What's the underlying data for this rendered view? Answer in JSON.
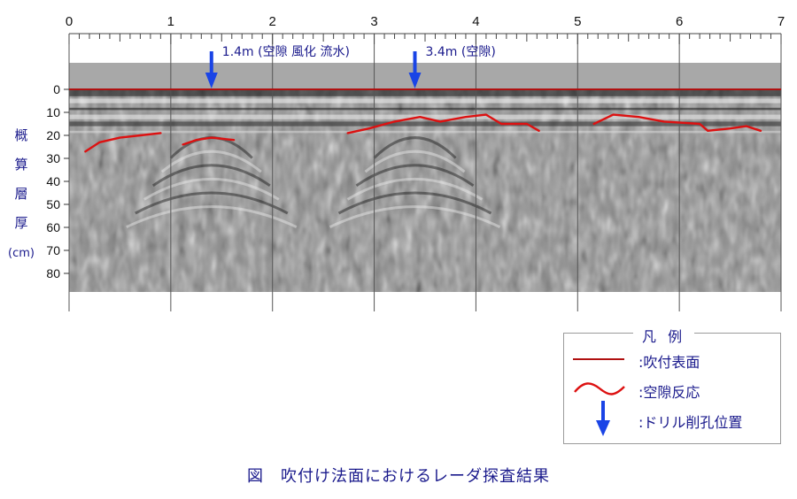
{
  "chart_data": {
    "type": "area",
    "x_ticks": [
      "0",
      "1",
      "2",
      "3",
      "4",
      "5",
      "6",
      "7"
    ],
    "xlim": [
      0,
      7
    ],
    "y_ticks": [
      "0",
      "10",
      "20",
      "30",
      "40",
      "50",
      "60",
      "70",
      "80"
    ],
    "ylim": [
      0,
      88
    ],
    "ylabel": [
      "概",
      "算",
      "層",
      "厚",
      "(cm)"
    ],
    "series": [
      {
        "name": "吹付表面",
        "color": "#b01010",
        "values": [
          [
            0,
            0
          ],
          [
            7,
            0
          ]
        ]
      },
      {
        "name": "空隙反応",
        "color": "#dd1111",
        "segments": [
          [
            [
              0.16,
              27
            ],
            [
              0.3,
              23
            ],
            [
              0.5,
              21
            ],
            [
              0.7,
              20
            ],
            [
              0.9,
              19
            ]
          ],
          [
            [
              1.12,
              24
            ],
            [
              1.25,
              22
            ],
            [
              1.4,
              21
            ],
            [
              1.62,
              22
            ]
          ],
          [
            [
              2.74,
              19
            ],
            [
              2.95,
              17
            ],
            [
              3.2,
              14
            ],
            [
              3.45,
              12
            ],
            [
              3.65,
              14
            ],
            [
              3.9,
              12
            ],
            [
              4.1,
              11
            ],
            [
              4.25,
              15
            ],
            [
              4.5,
              15
            ],
            [
              4.62,
              18
            ]
          ],
          [
            [
              5.16,
              15
            ],
            [
              5.35,
              11
            ],
            [
              5.6,
              12
            ],
            [
              5.85,
              14
            ],
            [
              6.2,
              15
            ],
            [
              6.28,
              18
            ],
            [
              6.5,
              17
            ],
            [
              6.66,
              16
            ],
            [
              6.8,
              18
            ]
          ]
        ]
      }
    ],
    "drill_markers": [
      {
        "x": 1.4,
        "label": "1.4m (空隙 風化 流水)"
      },
      {
        "x": 3.4,
        "label": "3.4m (空隙)"
      }
    ]
  },
  "legend": {
    "title": "凡 例",
    "items": [
      {
        "label": ":吹付表面"
      },
      {
        "label": ":空隙反応"
      },
      {
        "label": ":ドリル削孔位置"
      }
    ]
  },
  "caption": "図　吹付け法面におけるレーダ探査結果",
  "colors": {
    "text": "#1a1a8c",
    "arrow": "#1a44e6",
    "surface": "#b01010",
    "void": "#dd1111"
  }
}
